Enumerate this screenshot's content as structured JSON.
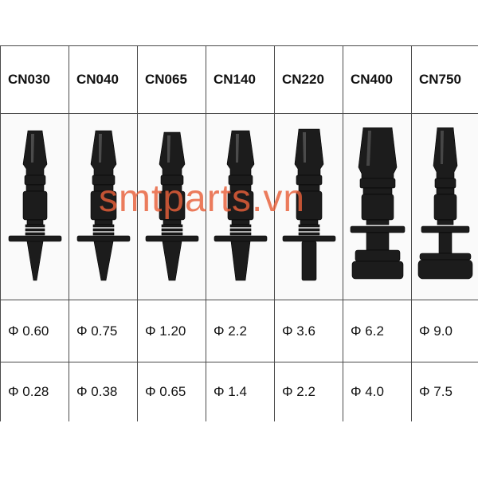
{
  "table": {
    "headers": [
      "CN030",
      "CN040",
      "CN065",
      "CN140",
      "CN220",
      "CN400",
      "CN750"
    ],
    "row1": [
      "Φ 0.60",
      "Φ 0.75",
      "Φ 1.20",
      "Φ 2.2",
      "Φ 3.6",
      "Φ 6.2",
      "Φ 9.0"
    ],
    "row2": [
      "Φ 0.28",
      "Φ 0.38",
      "Φ 0.65",
      "Φ 1.4",
      "Φ 2.2",
      "Φ 4.0",
      "Φ 7.5"
    ]
  },
  "watermark": "smtparts.vn",
  "icons": [
    "nozzle-cn030-icon",
    "nozzle-cn040-icon",
    "nozzle-cn065-icon",
    "nozzle-cn140-icon",
    "nozzle-cn220-icon",
    "nozzle-cn400-icon",
    "nozzle-cn750-icon"
  ],
  "colors": {
    "nozzle": "#1c1c1c",
    "watermark": "#e8603a",
    "border": "#4a4a4a"
  }
}
